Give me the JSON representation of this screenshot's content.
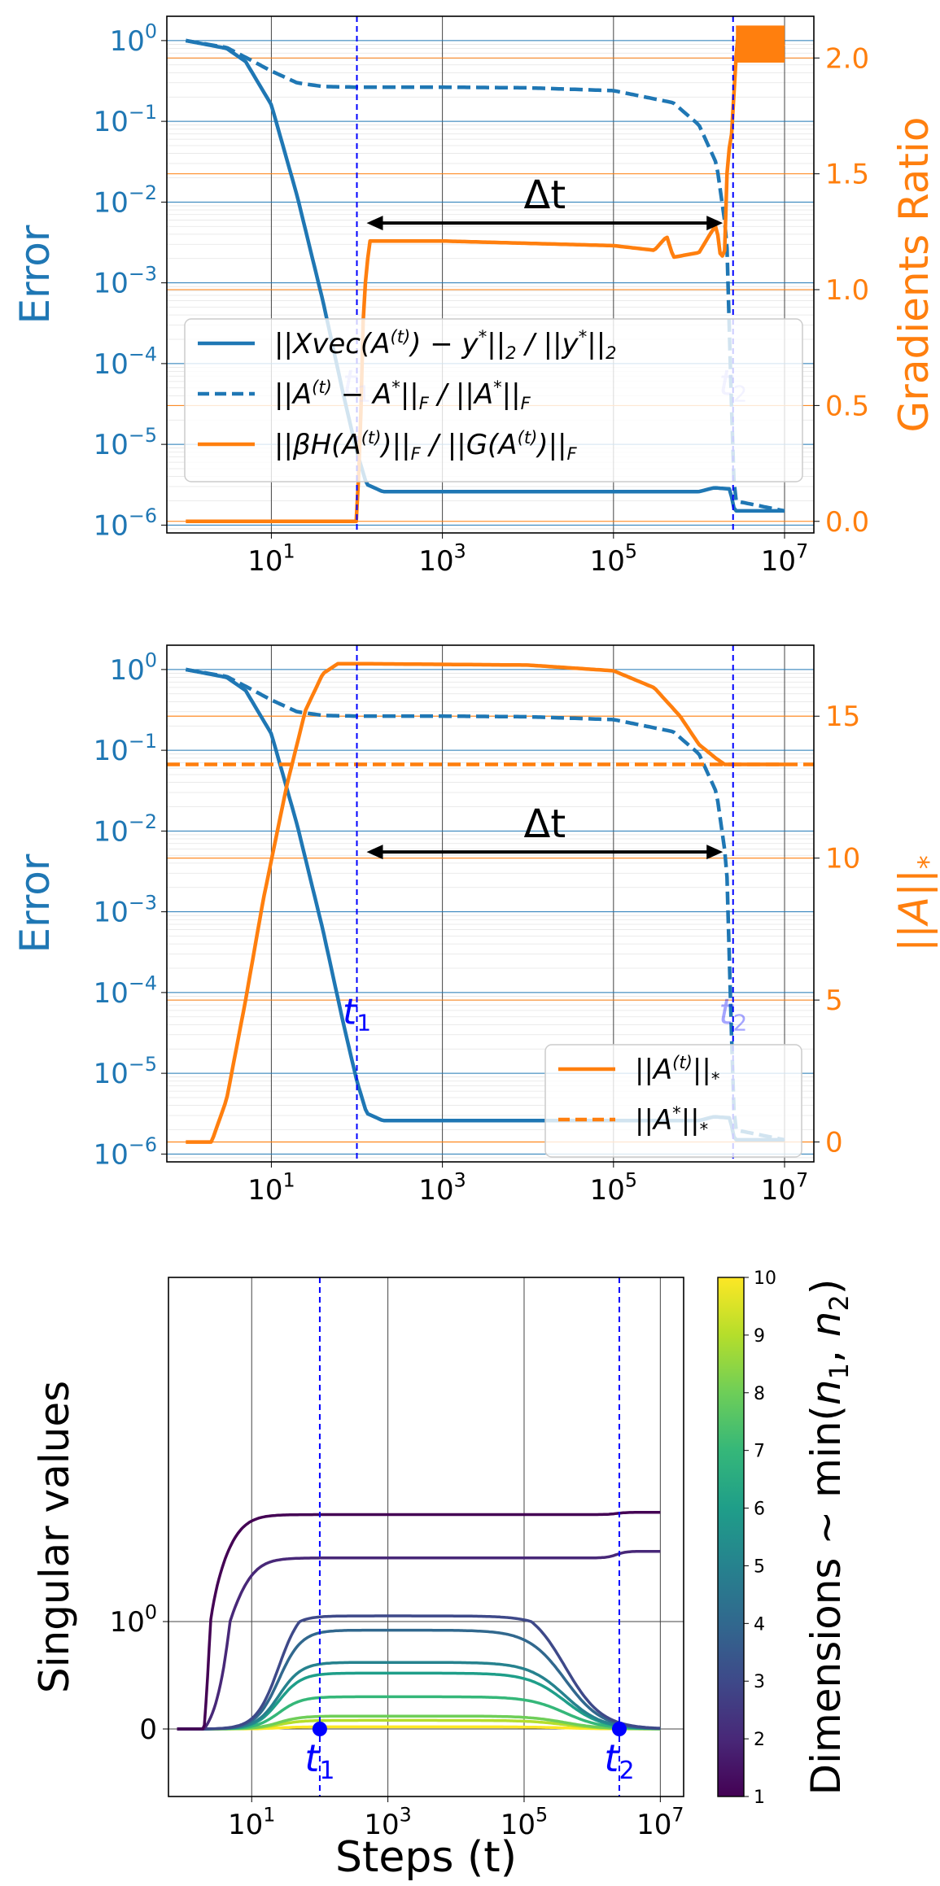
{
  "colors": {
    "blue": "#1f77b4",
    "orange": "#ff7f0e",
    "marker_blue": "#0000ff",
    "grid": "#444444"
  },
  "chart_data": [
    {
      "type": "line",
      "panel": "top",
      "x_scale": "log",
      "x_ticks": [
        "10^1",
        "10^3",
        "10^5",
        "10^7"
      ],
      "xlim": [
        0.6,
        22000000.0
      ],
      "y_left": {
        "label": "Error",
        "scale": "log",
        "ticks": [
          "10^0",
          "10^-1",
          "10^-2",
          "10^-3",
          "10^-4",
          "10^-5",
          "10^-6"
        ],
        "ylim": [
          8e-07,
          2
        ]
      },
      "y_right": {
        "label": "Gradients Ratio",
        "ticks": [
          "0.0",
          "0.5",
          "1.0",
          "1.5",
          "2.0"
        ],
        "ylim": [
          -0.05,
          2.18
        ]
      },
      "markers": [
        {
          "label": "t_1",
          "x": 100
        },
        {
          "label": "t_2",
          "x": 2500000.0
        }
      ],
      "annotation": "Δt",
      "legend": {
        "placement": "lower-center",
        "entries": [
          {
            "label": "||Xvec(A^(t)) − y*||_2 / ||y*||_2",
            "style": "solid",
            "color": "blue"
          },
          {
            "label": "||A^(t) − A*||_F / ||A*||_F",
            "style": "dashed",
            "color": "blue"
          },
          {
            "label": "||βH(A^(t))||_F / ||G(A^(t))||_F",
            "style": "solid",
            "color": "orange"
          }
        ]
      },
      "series": [
        {
          "axis": "left",
          "style": "solid",
          "color": "blue",
          "points": [
            [
              1,
              1.0
            ],
            [
              3,
              0.8
            ],
            [
              5,
              0.55
            ],
            [
              10,
              0.16
            ],
            [
              20,
              0.012
            ],
            [
              40,
              0.0006
            ],
            [
              70,
              4e-05
            ],
            [
              100,
              8e-06
            ],
            [
              130,
              3.2e-06
            ],
            [
              200,
              2.6e-06
            ],
            [
              10000.0,
              2.6e-06
            ],
            [
              1000000.0,
              2.6e-06
            ],
            [
              1500000.0,
              2.9e-06
            ],
            [
              2300000.0,
              2.8e-06
            ],
            [
              2600000.0,
              1.5e-06
            ],
            [
              10000000.0,
              1.5e-06
            ]
          ]
        },
        {
          "axis": "left",
          "style": "dashed",
          "color": "blue",
          "points": [
            [
              1,
              1.0
            ],
            [
              3,
              0.82
            ],
            [
              5,
              0.62
            ],
            [
              10,
              0.42
            ],
            [
              20,
              0.3
            ],
            [
              40,
              0.27
            ],
            [
              100,
              0.265
            ],
            [
              1000.0,
              0.265
            ],
            [
              10000.0,
              0.26
            ],
            [
              100000.0,
              0.24
            ],
            [
              500000.0,
              0.17
            ],
            [
              1000000.0,
              0.09
            ],
            [
              1600000.0,
              0.03
            ],
            [
              2100000.0,
              0.004
            ],
            [
              2400000.0,
              3e-05
            ],
            [
              2600000.0,
              2e-06
            ],
            [
              10000000.0,
              1.5e-06
            ]
          ]
        },
        {
          "axis": "right",
          "style": "solid",
          "color": "orange",
          "points": [
            [
              1,
              0.0
            ],
            [
              100,
              0.0
            ],
            [
              110,
              0.4
            ],
            [
              120,
              0.95
            ],
            [
              140,
              1.21
            ],
            [
              1000.0,
              1.21
            ],
            [
              10000.0,
              1.2
            ],
            [
              100000.0,
              1.19
            ],
            [
              300000.0,
              1.17
            ],
            [
              420000.0,
              1.23
            ],
            [
              500000.0,
              1.14
            ],
            [
              1000000.0,
              1.16
            ],
            [
              1400000.0,
              1.25
            ],
            [
              1600000.0,
              1.28
            ],
            [
              1800000.0,
              1.13
            ],
            [
              2000000.0,
              1.17
            ],
            [
              2200000.0,
              1.7
            ],
            [
              2300000.0,
              1.55
            ],
            [
              2500000.0,
              1.78
            ],
            [
              2700000.0,
              2.0
            ],
            [
              2900000.0,
              2.12
            ],
            [
              10000000.0,
              2.05
            ]
          ]
        }
      ]
    },
    {
      "type": "line",
      "panel": "middle",
      "x_scale": "log",
      "x_ticks": [
        "10^1",
        "10^3",
        "10^5",
        "10^7"
      ],
      "xlim": [
        0.6,
        22000000.0
      ],
      "y_left": {
        "label": "Error",
        "scale": "log",
        "ticks": [
          "10^0",
          "10^-1",
          "10^-2",
          "10^-3",
          "10^-4",
          "10^-5",
          "10^-6"
        ],
        "ylim": [
          8e-07,
          2
        ]
      },
      "y_right": {
        "label": "||A||_*",
        "ticks": [
          "0",
          "5",
          "10",
          "15"
        ],
        "ylim": [
          -0.7,
          17.5
        ]
      },
      "markers": [
        {
          "label": "t_1",
          "x": 100
        },
        {
          "label": "t_2",
          "x": 2500000.0
        }
      ],
      "annotation": "Δt",
      "legend": {
        "placement": "lower-right",
        "entries": [
          {
            "label": "||A^(t)||_*",
            "style": "solid",
            "color": "orange"
          },
          {
            "label": "||A*||_*",
            "style": "dashed",
            "color": "orange"
          }
        ]
      },
      "series": [
        {
          "axis": "left",
          "style": "solid",
          "color": "blue",
          "points": [
            [
              1,
              1.0
            ],
            [
              3,
              0.8
            ],
            [
              5,
              0.55
            ],
            [
              10,
              0.16
            ],
            [
              20,
              0.012
            ],
            [
              40,
              0.0006
            ],
            [
              70,
              4e-05
            ],
            [
              100,
              8e-06
            ],
            [
              130,
              3.2e-06
            ],
            [
              200,
              2.6e-06
            ],
            [
              10000.0,
              2.6e-06
            ],
            [
              1000000.0,
              2.6e-06
            ],
            [
              1500000.0,
              2.9e-06
            ],
            [
              2300000.0,
              2.8e-06
            ],
            [
              2600000.0,
              1.5e-06
            ],
            [
              10000000.0,
              1.5e-06
            ]
          ]
        },
        {
          "axis": "left",
          "style": "dashed",
          "color": "blue",
          "points": [
            [
              1,
              1.0
            ],
            [
              3,
              0.82
            ],
            [
              5,
              0.62
            ],
            [
              10,
              0.42
            ],
            [
              20,
              0.3
            ],
            [
              40,
              0.27
            ],
            [
              100,
              0.265
            ],
            [
              1000.0,
              0.265
            ],
            [
              10000.0,
              0.26
            ],
            [
              100000.0,
              0.24
            ],
            [
              500000.0,
              0.17
            ],
            [
              1000000.0,
              0.09
            ],
            [
              1600000.0,
              0.03
            ],
            [
              2100000.0,
              0.004
            ],
            [
              2400000.0,
              3e-05
            ],
            [
              2600000.0,
              2e-06
            ],
            [
              10000000.0,
              1.5e-06
            ]
          ]
        },
        {
          "axis": "right",
          "style": "solid",
          "color": "orange",
          "points": [
            [
              1,
              0.0
            ],
            [
              2,
              0.0
            ],
            [
              3,
              1.5
            ],
            [
              5,
              5.0
            ],
            [
              8,
              8.5
            ],
            [
              15,
              12.5
            ],
            [
              25,
              15.2
            ],
            [
              40,
              16.5
            ],
            [
              60,
              16.85
            ],
            [
              100,
              16.85
            ],
            [
              10000.0,
              16.8
            ],
            [
              100000.0,
              16.6
            ],
            [
              300000.0,
              16.0
            ],
            [
              600000.0,
              15.0
            ],
            [
              1000000.0,
              14.0
            ],
            [
              1600000.0,
              13.5
            ],
            [
              2000000.0,
              13.3
            ],
            [
              10000000.0,
              13.3
            ]
          ]
        },
        {
          "axis": "right",
          "style": "dashed",
          "color": "orange",
          "points": [
            [
              0.6,
              13.3
            ],
            [
              22000000.0,
              13.3
            ]
          ]
        }
      ]
    },
    {
      "type": "line",
      "panel": "bottom",
      "x_scale": "log",
      "x_ticks": [
        "10^1",
        "10^3",
        "10^5",
        "10^7"
      ],
      "xlabel": "Steps (t)",
      "xlim": [
        0.6,
        22000000.0
      ],
      "ylabel": "Singular values",
      "y_scale": "symlog",
      "y_ticks": [
        "0",
        "10^0"
      ],
      "markers": [
        {
          "label": "t_1",
          "x": 100
        },
        {
          "label": "t_2",
          "x": 2500000.0
        }
      ],
      "colorbar": {
        "label": "Dimensions ~ min(n_1, n_2)",
        "ticks": [
          "1",
          "2",
          "3",
          "4",
          "5",
          "6",
          "7",
          "8",
          "9",
          "10"
        ],
        "colormap": "viridis"
      },
      "series": [
        {
          "k": 1,
          "plateau": 16.5,
          "final": 17.5
        },
        {
          "k": 2,
          "plateau": 5.3,
          "final": 6.3
        },
        {
          "k": 3,
          "plateau": 1.16,
          "final": 0.0
        },
        {
          "k": 4,
          "plateau": 0.92,
          "final": 0.0
        },
        {
          "k": 5,
          "plateau": 0.62,
          "final": 0.0
        },
        {
          "k": 6,
          "plateau": 0.52,
          "final": 0.0
        },
        {
          "k": 7,
          "plateau": 0.3,
          "final": 0.0
        },
        {
          "k": 8,
          "plateau": 0.12,
          "final": 0.0
        },
        {
          "k": 9,
          "plateau": 0.08,
          "final": 0.0
        },
        {
          "k": 10,
          "plateau": 0.02,
          "final": 0.0
        }
      ]
    }
  ]
}
